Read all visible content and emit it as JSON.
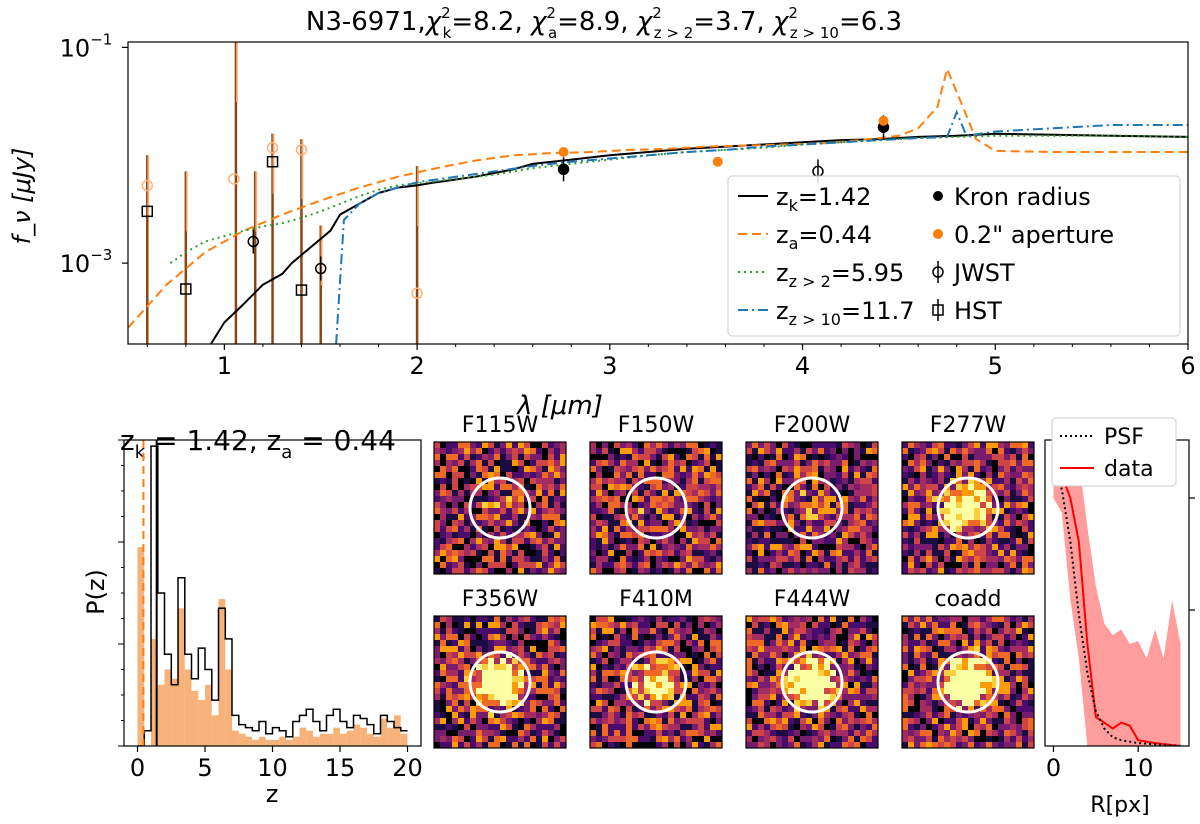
{
  "figure_title": "N3-6971,χ²ₖ=8.2, χ²ₐ=8.9, χ²_{z>2}=3.7, χ²_{z>10}=6.3",
  "title_parts": {
    "name": "N3-6971,",
    "chi": "χ",
    "k": "k",
    "a": "a",
    "z2": "z > 2",
    "z10": "z > 10",
    "sq": "2",
    "vk": "=8.2,",
    "va": "=8.9,",
    "vz2": "=3.7,",
    "vz10": "=6.3"
  },
  "sed": {
    "xlabel": "λ [μm]",
    "ylabel": "f_ν [μJy]",
    "xlim": [
      0.5,
      6.0
    ],
    "ylim_log10": [
      -3.75,
      -0.95
    ],
    "yscale": "log",
    "xticks": [
      1,
      2,
      3,
      4,
      5,
      6
    ],
    "yticks": [
      {
        "label": "10",
        "exp": "−1",
        "v": -1
      },
      {
        "label": "10",
        "exp": "−3",
        "v": -3
      }
    ],
    "legend": {
      "position": "lower-right inside",
      "lines": [
        {
          "label": "z",
          "sub": "k",
          "val": "=1.42",
          "color": "#000000",
          "dash": ""
        },
        {
          "label": "z",
          "sub": "a",
          "val": "=0.44",
          "color": "#ff7f0e",
          "dash": "9,5"
        },
        {
          "label": "z",
          "sub": "z > 2",
          "val": "=5.95",
          "color": "#2ca02c",
          "dash": "2,4"
        },
        {
          "label": "z",
          "sub": "z > 10",
          "val": "=11.7",
          "color": "#1f77b4",
          "dash": "10,4,2,4"
        }
      ],
      "markers": [
        {
          "label": "Kron radius",
          "kind": "dot",
          "color": "#000000"
        },
        {
          "label": "0.2\" aperture",
          "kind": "dot",
          "color": "#ff7f0e"
        },
        {
          "label": "JWST",
          "kind": "circle",
          "color": "#000000"
        },
        {
          "label": "HST",
          "kind": "square",
          "color": "#000000"
        }
      ]
    },
    "series": [
      {
        "name": "z_k=1.42",
        "color": "#000000",
        "dash": "",
        "points": [
          [
            0.93,
            -3.75
          ],
          [
            1.0,
            -3.55
          ],
          [
            1.1,
            -3.38
          ],
          [
            1.2,
            -3.2
          ],
          [
            1.3,
            -3.1
          ],
          [
            1.35,
            -3.0
          ],
          [
            1.45,
            -2.85
          ],
          [
            1.55,
            -2.7
          ],
          [
            1.6,
            -2.55
          ],
          [
            1.7,
            -2.45
          ],
          [
            1.8,
            -2.35
          ],
          [
            1.9,
            -2.3
          ],
          [
            2.0,
            -2.28
          ],
          [
            2.1,
            -2.25
          ],
          [
            2.3,
            -2.2
          ],
          [
            2.5,
            -2.13
          ],
          [
            2.6,
            -2.08
          ],
          [
            2.7,
            -2.06
          ],
          [
            2.8,
            -2.04
          ],
          [
            3.0,
            -2.0
          ],
          [
            3.2,
            -1.97
          ],
          [
            3.4,
            -1.94
          ],
          [
            3.6,
            -1.92
          ],
          [
            3.8,
            -1.9
          ],
          [
            4.0,
            -1.88
          ],
          [
            4.2,
            -1.86
          ],
          [
            4.4,
            -1.85
          ],
          [
            4.6,
            -1.83
          ],
          [
            4.8,
            -1.82
          ],
          [
            5.0,
            -1.8
          ],
          [
            5.3,
            -1.81
          ],
          [
            5.6,
            -1.82
          ],
          [
            6.0,
            -1.83
          ]
        ]
      },
      {
        "name": "z_a=0.44",
        "color": "#ff7f0e",
        "dash": "9,5",
        "points": [
          [
            0.5,
            -3.6
          ],
          [
            0.6,
            -3.4
          ],
          [
            0.7,
            -3.2
          ],
          [
            0.8,
            -3.05
          ],
          [
            0.9,
            -2.9
          ],
          [
            1.0,
            -2.8
          ],
          [
            1.1,
            -2.7
          ],
          [
            1.3,
            -2.55
          ],
          [
            1.5,
            -2.42
          ],
          [
            1.7,
            -2.3
          ],
          [
            1.9,
            -2.2
          ],
          [
            2.1,
            -2.12
          ],
          [
            2.3,
            -2.05
          ],
          [
            2.5,
            -2.0
          ],
          [
            2.7,
            -1.98
          ],
          [
            2.9,
            -1.97
          ],
          [
            3.1,
            -1.95
          ],
          [
            3.3,
            -1.94
          ],
          [
            3.5,
            -1.92
          ],
          [
            3.7,
            -1.91
          ],
          [
            3.9,
            -1.9
          ],
          [
            4.1,
            -1.89
          ],
          [
            4.3,
            -1.86
          ],
          [
            4.5,
            -1.82
          ],
          [
            4.6,
            -1.75
          ],
          [
            4.7,
            -1.55
          ],
          [
            4.75,
            -1.2
          ],
          [
            4.82,
            -1.5
          ],
          [
            4.9,
            -1.85
          ],
          [
            5.0,
            -1.96
          ],
          [
            5.3,
            -1.97
          ],
          [
            5.6,
            -1.97
          ],
          [
            6.0,
            -1.97
          ]
        ]
      },
      {
        "name": "z_{z>2}=5.95",
        "color": "#2ca02c",
        "dash": "2,4",
        "points": [
          [
            0.72,
            -3.0
          ],
          [
            0.8,
            -2.9
          ],
          [
            0.9,
            -2.8
          ],
          [
            1.0,
            -2.75
          ],
          [
            1.1,
            -2.7
          ],
          [
            1.2,
            -2.66
          ],
          [
            1.3,
            -2.63
          ],
          [
            1.4,
            -2.58
          ],
          [
            1.5,
            -2.52
          ],
          [
            1.6,
            -2.45
          ],
          [
            1.7,
            -2.38
          ],
          [
            1.8,
            -2.32
          ],
          [
            1.9,
            -2.28
          ],
          [
            2.0,
            -2.26
          ],
          [
            2.2,
            -2.22
          ],
          [
            2.4,
            -2.18
          ],
          [
            2.6,
            -2.12
          ],
          [
            2.8,
            -2.08
          ],
          [
            3.0,
            -2.04
          ],
          [
            3.2,
            -2.0
          ],
          [
            3.4,
            -1.97
          ],
          [
            3.6,
            -1.95
          ],
          [
            3.8,
            -1.93
          ],
          [
            4.0,
            -1.9
          ],
          [
            4.2,
            -1.88
          ],
          [
            4.4,
            -1.86
          ],
          [
            4.6,
            -1.84
          ],
          [
            4.8,
            -1.83
          ],
          [
            5.0,
            -1.82
          ],
          [
            5.4,
            -1.82
          ],
          [
            5.7,
            -1.82
          ],
          [
            6.0,
            -1.83
          ]
        ]
      },
      {
        "name": "z_{z>10}=11.7",
        "color": "#1f77b4",
        "dash": "10,4,2,4",
        "points": [
          [
            1.58,
            -3.75
          ],
          [
            1.62,
            -2.6
          ],
          [
            1.7,
            -2.45
          ],
          [
            1.8,
            -2.35
          ],
          [
            1.9,
            -2.3
          ],
          [
            2.0,
            -2.25
          ],
          [
            2.2,
            -2.2
          ],
          [
            2.4,
            -2.15
          ],
          [
            2.6,
            -2.1
          ],
          [
            2.8,
            -2.06
          ],
          [
            3.0,
            -2.03
          ],
          [
            3.2,
            -2.0
          ],
          [
            3.4,
            -1.97
          ],
          [
            3.6,
            -1.95
          ],
          [
            3.8,
            -1.92
          ],
          [
            4.0,
            -1.9
          ],
          [
            4.2,
            -1.88
          ],
          [
            4.4,
            -1.86
          ],
          [
            4.6,
            -1.84
          ],
          [
            4.75,
            -1.83
          ],
          [
            4.8,
            -1.6
          ],
          [
            4.85,
            -1.82
          ],
          [
            5.0,
            -1.78
          ],
          [
            5.3,
            -1.75
          ],
          [
            5.6,
            -1.72
          ],
          [
            6.0,
            -1.72
          ]
        ]
      }
    ],
    "photometry": [
      {
        "set": "kron",
        "x": 2.76,
        "y": -2.13,
        "color": "#000000"
      },
      {
        "set": "kron",
        "x": 4.42,
        "y": -1.74,
        "color": "#000000"
      },
      {
        "set": "aperture",
        "x": 2.76,
        "y": -1.97,
        "color": "#ff7f0e"
      },
      {
        "set": "aperture",
        "x": 3.56,
        "y": -2.06,
        "color": "#ff7f0e"
      },
      {
        "set": "aperture",
        "x": 4.42,
        "y": -1.68,
        "color": "#ff7f0e"
      }
    ],
    "jwst": [
      [
        1.15,
        -2.8
      ],
      [
        1.5,
        -3.05
      ],
      [
        4.08,
        -2.15
      ],
      [
        2.76,
        -2.13
      ],
      [
        4.42,
        -1.74
      ]
    ],
    "hst": [
      [
        0.6,
        -2.52
      ],
      [
        0.8,
        -3.24
      ],
      [
        1.25,
        -2.06
      ],
      [
        1.4,
        -3.25
      ]
    ],
    "upper_open_orange": [
      [
        0.6,
        -2.28
      ],
      [
        1.05,
        -2.22
      ],
      [
        1.25,
        -1.93
      ],
      [
        1.4,
        -1.95
      ],
      [
        2.0,
        -3.28
      ]
    ],
    "errorbars": [
      {
        "x": 0.6,
        "lo": -3.75,
        "hi": -2.0,
        "color": "#8b4513"
      },
      {
        "x": 0.8,
        "lo": -3.75,
        "hi": -2.15,
        "color": "#8b4513"
      },
      {
        "x": 1.06,
        "lo": -3.75,
        "hi": -0.95,
        "color": "#8b4513"
      },
      {
        "x": 1.16,
        "lo": -3.75,
        "hi": -2.15,
        "color": "#8b4513"
      },
      {
        "x": 1.25,
        "lo": -3.75,
        "hi": -1.8,
        "color": "#8b4513"
      },
      {
        "x": 1.4,
        "lo": -3.75,
        "hi": -1.85,
        "color": "#8b4513"
      },
      {
        "x": 1.5,
        "lo": -3.75,
        "hi": -2.65,
        "color": "#8b4513"
      },
      {
        "x": 2.0,
        "lo": -3.75,
        "hi": -2.1,
        "color": "#8b4513"
      }
    ]
  },
  "pz": {
    "title_parts": {
      "z": "z",
      "k": "k",
      "vk": " = 1.42, ",
      "a": "a",
      "va": " = 0.44"
    },
    "xlabel": "z",
    "ylabel": "P(z)",
    "xlim": [
      -1,
      21
    ],
    "ylim": [
      0,
      1.0
    ],
    "xticks": [
      0,
      5,
      10,
      15,
      20
    ],
    "kron_hist": {
      "color": "#000000",
      "bin_width": 0.5,
      "values": [
        0.0,
        0.05,
        0.98,
        0.5,
        0.3,
        0.2,
        0.55,
        0.3,
        0.22,
        0.32,
        0.25,
        0.15,
        0.45,
        0.35,
        0.1,
        0.07,
        0.06,
        0.05,
        0.08,
        0.04,
        0.06,
        0.05,
        0.03,
        0.08,
        0.1,
        0.12,
        0.08,
        0.05,
        0.1,
        0.12,
        0.08,
        0.06,
        0.1,
        0.09,
        0.07,
        0.04,
        0.1,
        0.08,
        0.06,
        0.05
      ]
    },
    "aperture_hist": {
      "color": "#f4a460",
      "bin_width": 0.5,
      "values": [
        0.65,
        0.0,
        0.35,
        0.2,
        0.25,
        0.22,
        0.45,
        0.25,
        0.18,
        0.15,
        0.2,
        0.1,
        0.48,
        0.25,
        0.05,
        0.04,
        0.03,
        0.02,
        0.03,
        0.02,
        0.02,
        0.03,
        0.02,
        0.03,
        0.06,
        0.05,
        0.03,
        0.04,
        0.04,
        0.06,
        0.04,
        0.05,
        0.07,
        0.06,
        0.04,
        0.03,
        0.09,
        0.06,
        0.1,
        0.04
      ]
    },
    "kron_marker": {
      "x": 1.42,
      "color": "#000000"
    },
    "aperture_marker": {
      "x": 0.44,
      "color": "#ff7f0e"
    }
  },
  "cutouts": [
    {
      "label": "F115W",
      "brightness": 0.12
    },
    {
      "label": "F150W",
      "brightness": 0.1
    },
    {
      "label": "F200W",
      "brightness": 0.15
    },
    {
      "label": "F277W",
      "brightness": 0.75
    },
    {
      "label": "F356W",
      "brightness": 0.9
    },
    {
      "label": "F410M",
      "brightness": 0.55
    },
    {
      "label": "F444W",
      "brightness": 0.85
    },
    {
      "label": "coadd",
      "brightness": 0.95
    }
  ],
  "profile": {
    "xlabel": "R[px]",
    "xticks": [
      0,
      10
    ],
    "legend": [
      {
        "label": "PSF",
        "color": "#000000",
        "dash": "2,3"
      },
      {
        "label": "data",
        "color": "#ff0000",
        "dash": ""
      }
    ],
    "psf": [
      [
        0,
        0.95
      ],
      [
        1,
        0.88
      ],
      [
        2,
        0.7
      ],
      [
        3,
        0.45
      ],
      [
        4,
        0.25
      ],
      [
        5,
        0.12
      ],
      [
        6,
        0.06
      ],
      [
        7,
        0.03
      ],
      [
        8,
        0.02
      ],
      [
        10,
        0.01
      ],
      [
        15,
        0.0
      ]
    ],
    "data": [
      [
        0,
        0.95
      ],
      [
        1,
        0.93
      ],
      [
        2,
        0.85
      ],
      [
        3,
        0.7
      ],
      [
        4,
        0.35
      ],
      [
        5,
        0.1
      ],
      [
        6,
        0.08
      ],
      [
        7,
        0.06
      ],
      [
        8,
        0.08
      ],
      [
        9,
        0.07
      ],
      [
        10,
        0.02
      ],
      [
        12,
        0.01
      ],
      [
        15,
        0.0
      ]
    ],
    "band_hi": [
      [
        0,
        1.0
      ],
      [
        1,
        1.0
      ],
      [
        2,
        1.0
      ],
      [
        3,
        0.98
      ],
      [
        4,
        0.75
      ],
      [
        5,
        0.55
      ],
      [
        6,
        0.42
      ],
      [
        7,
        0.38
      ],
      [
        8,
        0.4
      ],
      [
        9,
        0.35
      ],
      [
        10,
        0.36
      ],
      [
        11,
        0.3
      ],
      [
        12,
        0.4
      ],
      [
        13,
        0.3
      ],
      [
        14,
        0.5
      ],
      [
        15,
        0.35
      ]
    ],
    "band_lo": [
      [
        0,
        0.85
      ],
      [
        1,
        0.8
      ],
      [
        2,
        0.5
      ],
      [
        3,
        0.3
      ],
      [
        4,
        0.0
      ],
      [
        15,
        0.0
      ]
    ],
    "xlim": [
      -1,
      16
    ],
    "ylim": [
      0,
      1.05
    ]
  }
}
